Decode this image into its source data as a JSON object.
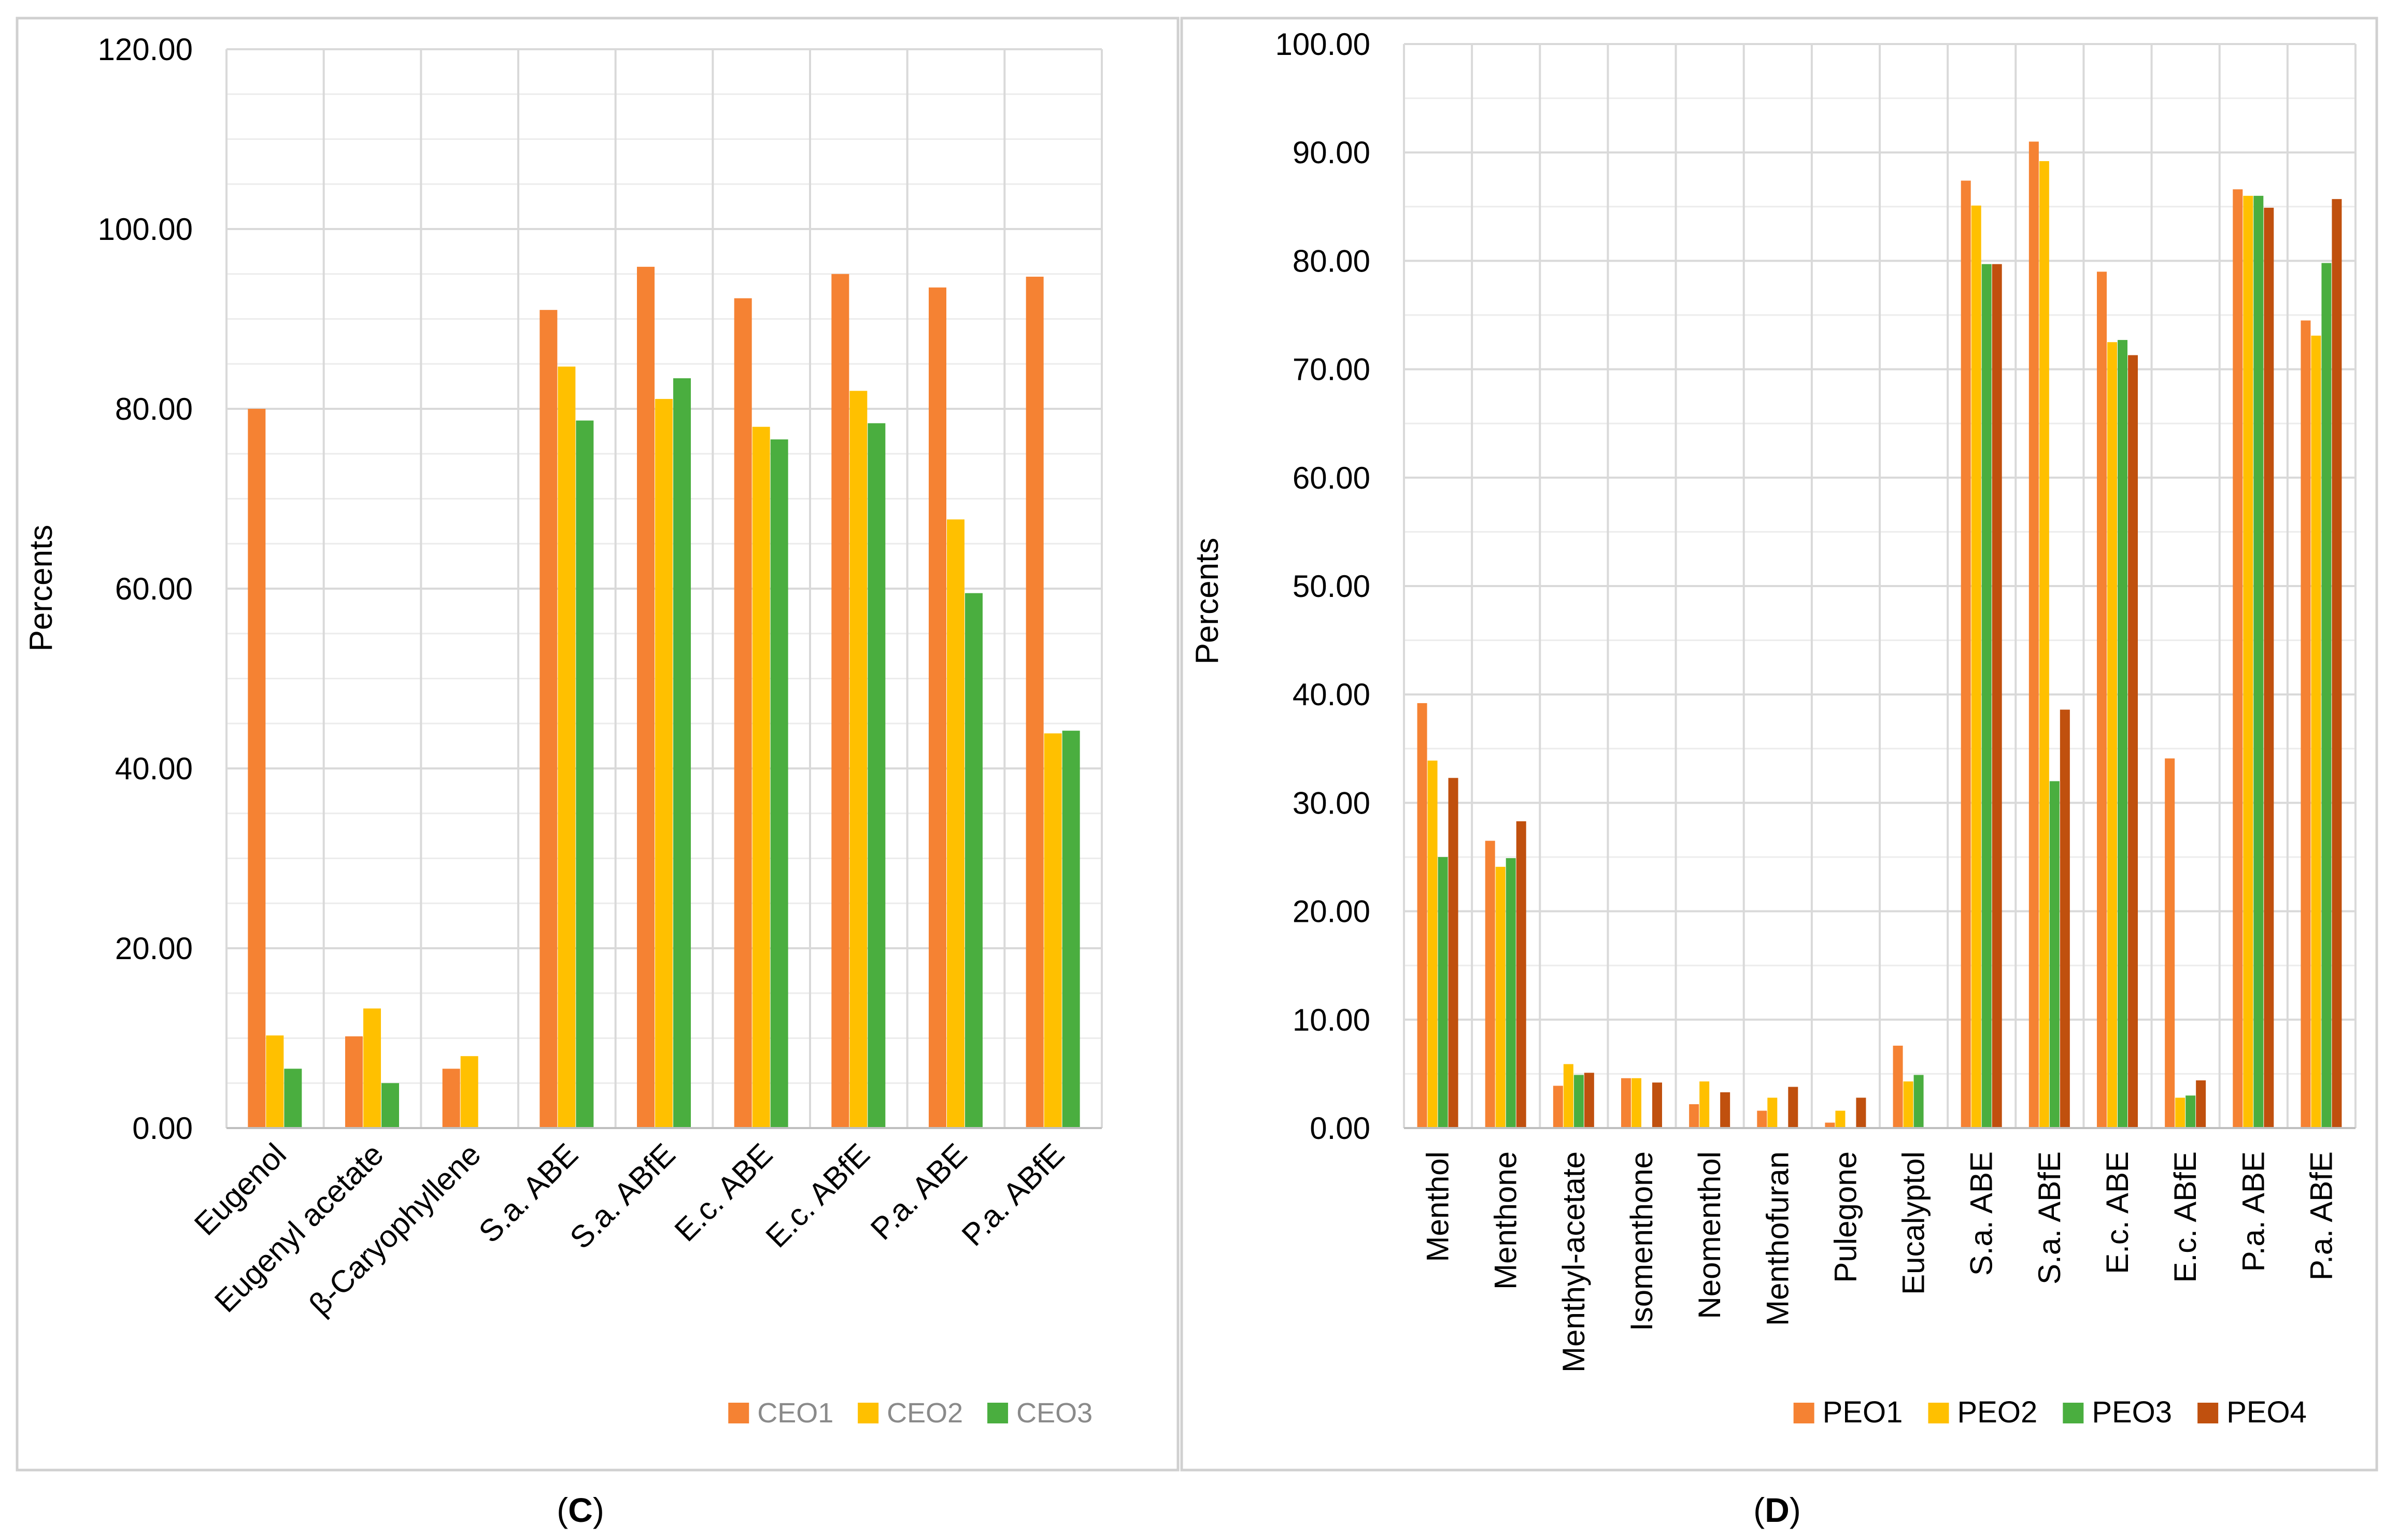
{
  "charts": [
    {
      "panel_label": "(C)",
      "panel_letter": "C"
    },
    {
      "panel_label": "(D)",
      "panel_letter": "D"
    }
  ],
  "colors": {
    "orange": "#F58233",
    "yellow": "#FFC000",
    "green": "#4AAE3F",
    "darkred": "#C0500E"
  },
  "chart_data": [
    {
      "type": "bar",
      "title": "",
      "xlabel": "",
      "ylabel": "Percents",
      "ylim": [
        0,
        120
      ],
      "ytick_step": 20,
      "ytick_labels": [
        "0.00",
        "20.00",
        "40.00",
        "60.00",
        "80.00",
        "100.00",
        "120.00"
      ],
      "grid": true,
      "legend": "bottom-right",
      "categories": [
        "Eugenol",
        "Eugenyl acetate",
        "β-Caryophyllene",
        "S.a. ABE",
        "S.a. ABfE",
        "E.c. ABE",
        "E.c. ABfE",
        "P.a. ABE",
        "P.a. ABfE"
      ],
      "series": [
        {
          "name": "CEO1",
          "color": "#F58233",
          "values": [
            80.0,
            10.2,
            6.6,
            91.0,
            95.8,
            92.3,
            95.0,
            93.5,
            94.7
          ]
        },
        {
          "name": "CEO2",
          "color": "#FFC000",
          "values": [
            10.3,
            13.3,
            8.0,
            84.7,
            81.1,
            78.0,
            82.0,
            67.7,
            43.9
          ]
        },
        {
          "name": "CEO3",
          "color": "#4AAE3F",
          "values": [
            6.6,
            5.0,
            0,
            78.7,
            83.4,
            76.6,
            78.4,
            59.5,
            44.2
          ]
        }
      ]
    },
    {
      "type": "bar",
      "title": "",
      "xlabel": "",
      "ylabel": "Percents",
      "ylim": [
        0,
        100
      ],
      "ytick_step": 10,
      "ytick_labels": [
        "0.00",
        "10.00",
        "20.00",
        "30.00",
        "40.00",
        "50.00",
        "60.00",
        "70.00",
        "80.00",
        "90.00",
        "100.00"
      ],
      "grid": true,
      "legend": "bottom-right",
      "categories": [
        "Menthol",
        "Menthone",
        "Menthyl-acetate",
        "Isomenthone",
        "Neomenthol",
        "Menthofuran",
        "Pulegone",
        "Eucalyptol",
        "S.a. ABE",
        "S.a. ABfE",
        "E.c. ABE",
        "E.c. ABfE",
        "P.a. ABE",
        "P.a. ABfE"
      ],
      "series": [
        {
          "name": "PEO1",
          "color": "#F58233",
          "values": [
            39.2,
            26.5,
            3.9,
            4.6,
            2.2,
            1.6,
            0.5,
            7.6,
            87.4,
            91.0,
            79.0,
            34.1,
            86.6,
            74.5
          ]
        },
        {
          "name": "PEO2",
          "color": "#FFC000",
          "values": [
            33.9,
            24.1,
            5.9,
            4.6,
            4.3,
            2.8,
            1.6,
            4.3,
            85.1,
            89.2,
            72.5,
            2.8,
            86.0,
            73.1
          ]
        },
        {
          "name": "PEO3",
          "color": "#4AAE3F",
          "values": [
            25.0,
            24.9,
            4.9,
            0,
            0,
            0,
            0,
            4.9,
            79.7,
            32.0,
            72.7,
            3.0,
            86.0,
            79.8
          ]
        },
        {
          "name": "PEO4",
          "color": "#C0500E",
          "values": [
            32.3,
            28.3,
            5.1,
            4.2,
            3.3,
            3.8,
            2.8,
            0,
            79.7,
            38.6,
            71.3,
            4.4,
            84.9,
            85.7
          ]
        }
      ]
    }
  ]
}
